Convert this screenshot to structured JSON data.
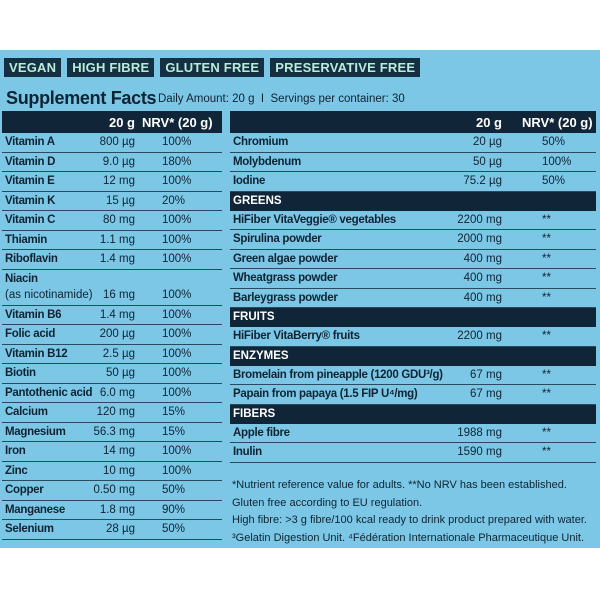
{
  "badges": [
    "VEGAN",
    "HIGH FIBRE",
    "GLUTEN FREE",
    "PRESERVATIVE FREE"
  ],
  "header": {
    "title": "Supplement Facts",
    "subtitle": "Daily Amount: 20 g  I  Servings per container: 30"
  },
  "left_table": {
    "columns": [
      "20 g",
      "NRV* (20 g)"
    ],
    "rows": [
      {
        "name": "Vitamin A",
        "amount": "800 µg",
        "nrv": "100%"
      },
      {
        "name": "Vitamin D",
        "amount": "9.0 µg",
        "nrv": "180%"
      },
      {
        "name": "Vitamin E",
        "amount": "12 mg",
        "nrv": "100%"
      },
      {
        "name": "Vitamin K",
        "amount": "15 µg",
        "nrv": "20%"
      },
      {
        "name": "Vitamin C",
        "amount": "80 mg",
        "nrv": "100%"
      },
      {
        "name": "Thiamin",
        "amount": "1.1 mg",
        "nrv": "100%"
      },
      {
        "name": "Riboflavin",
        "amount": "1.4 mg",
        "nrv": "100%"
      },
      {
        "name": "Niacin",
        "note": "(as nicotinamide)",
        "amount": "16 mg",
        "nrv": "100%"
      },
      {
        "name": "Vitamin B6",
        "amount": "1.4 mg",
        "nrv": "100%"
      },
      {
        "name": "Folic acid",
        "amount": "200 µg",
        "nrv": "100%"
      },
      {
        "name": "Vitamin B12",
        "amount": "2.5 µg",
        "nrv": "100%"
      },
      {
        "name": "Biotin",
        "amount": "50 µg",
        "nrv": "100%"
      },
      {
        "name": "Pantothenic acid",
        "amount": "6.0 mg",
        "nrv": "100%"
      },
      {
        "name": "Calcium",
        "amount": "120 mg",
        "nrv": "15%"
      },
      {
        "name": "Magnesium",
        "amount": "56.3 mg",
        "nrv": "15%"
      },
      {
        "name": "Iron",
        "amount": "14 mg",
        "nrv": "100%"
      },
      {
        "name": "Zinc",
        "amount": "10 mg",
        "nrv": "100%"
      },
      {
        "name": "Copper",
        "amount": "0.50 mg",
        "nrv": "50%"
      },
      {
        "name": "Manganese",
        "amount": "1.8 mg",
        "nrv": "90%"
      },
      {
        "name": "Selenium",
        "amount": "28 µg",
        "nrv": "50%"
      }
    ]
  },
  "right_table": {
    "columns": [
      "20 g",
      "NRV* (20 g)"
    ],
    "rows": [
      {
        "name": "Chromium",
        "amount": "20 µg",
        "nrv": "50%"
      },
      {
        "name": "Molybdenum",
        "amount": "50 µg",
        "nrv": "100%"
      },
      {
        "name": "Iodine",
        "amount": "75.2 µg",
        "nrv": "50%"
      }
    ],
    "sections": [
      {
        "title": "GREENS",
        "rows": [
          {
            "name": "HiFiber VitaVeggie® vegetables",
            "amount": "2200 mg",
            "nrv": "**"
          },
          {
            "name": "Spirulina powder",
            "amount": "2000 mg",
            "nrv": "**"
          },
          {
            "name": "Green algae powder",
            "amount": "400 mg",
            "nrv": "**"
          },
          {
            "name": "Wheatgrass powder",
            "amount": "400 mg",
            "nrv": "**"
          },
          {
            "name": "Barleygrass powder",
            "amount": "400 mg",
            "nrv": "**"
          }
        ]
      },
      {
        "title": "FRUITS",
        "rows": [
          {
            "name": "HiFiber VitaBerry® fruits",
            "amount": "2200 mg",
            "nrv": "**"
          }
        ]
      },
      {
        "title": "ENZYMES",
        "rows": [
          {
            "name": "Bromelain from pineapple (1200 GDU³/g)",
            "amount": "67 mg",
            "nrv": "**"
          },
          {
            "name": "Papain from papaya (1.5 FIP U⁴/mg)",
            "amount": "67 mg",
            "nrv": "**"
          }
        ]
      },
      {
        "title": "FIBERS",
        "rows": [
          {
            "name": "Apple fibre",
            "amount": "1988 mg",
            "nrv": "**"
          },
          {
            "name": "Inulin",
            "amount": "1590 mg",
            "nrv": "**"
          }
        ]
      }
    ]
  },
  "footnotes": [
    "*Nutrient reference value for adults. **No NRV has been established.",
    "Gluten free according to EU regulation.",
    "High fibre: >3 g fibre/100 kcal ready to drink product prepared with water.",
    "³Gelatin Digestion Unit. ⁴Fédération Internationale Pharmaceutique Unit."
  ]
}
